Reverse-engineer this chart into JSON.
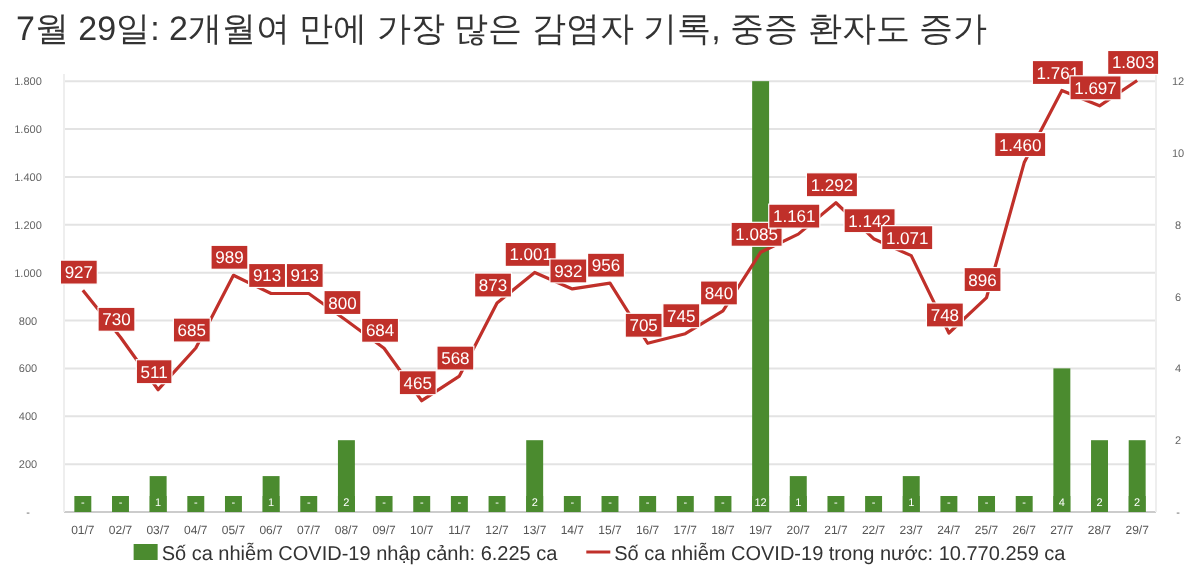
{
  "chart_data": {
    "type": "bar",
    "title": "7월 29일: 2개월여 만에 가장 많은 감염자 기록, 중증 환자도 증가",
    "categories": [
      "01/7",
      "02/7",
      "03/7",
      "04/7",
      "05/7",
      "06/7",
      "07/7",
      "08/7",
      "09/7",
      "10/7",
      "11/7",
      "12/7",
      "13/7",
      "14/7",
      "15/7",
      "16/7",
      "17/7",
      "18/7",
      "19/7",
      "20/7",
      "21/7",
      "22/7",
      "23/7",
      "24/7",
      "25/7",
      "26/7",
      "27/7",
      "28/7",
      "29/7"
    ],
    "series": [
      {
        "name": "Số ca nhiễm COVID-19 nhập cảnh: 6.225 ca",
        "axis": "y2",
        "color": "#4b8b2f",
        "values": [
          0,
          0,
          1,
          0,
          0,
          1,
          0,
          2,
          0,
          0,
          0,
          0,
          2,
          0,
          0,
          0,
          0,
          0,
          12,
          1,
          0,
          0,
          1,
          0,
          0,
          0,
          4,
          2,
          2
        ],
        "value_labels": [
          "-",
          "-",
          "1",
          "-",
          "-",
          "1",
          "-",
          "2",
          "-",
          "-",
          "-",
          "-",
          "2",
          "-",
          "-",
          "-",
          "-",
          "-",
          "12",
          "1",
          "-",
          "-",
          "1",
          "-",
          "-",
          "-",
          "4",
          "2",
          "2"
        ]
      },
      {
        "name": "Số ca nhiễm COVID-19 trong nước: 10.770.259 ca",
        "type": "line",
        "color": "#c0302a",
        "values": [
          927,
          730,
          511,
          685,
          989,
          913,
          913,
          800,
          684,
          465,
          568,
          873,
          1001,
          932,
          956,
          705,
          745,
          840,
          1085,
          1161,
          1292,
          1142,
          1071,
          748,
          896,
          1460,
          1761,
          1697,
          1803
        ],
        "value_labels": [
          "927",
          "730",
          "511",
          "685",
          "989",
          "913",
          "913",
          "800",
          "684",
          "465",
          "568",
          "873",
          "1.001",
          "932",
          "956",
          "705",
          "745",
          "840",
          "1.085",
          "1.161",
          "1.292",
          "1.142",
          "1.071",
          "748",
          "896",
          "1.460",
          "1.761",
          "1.697",
          "1.803"
        ]
      }
    ],
    "ylim": [
      0,
      1830
    ],
    "yticks": [
      {
        "value": 0,
        "label": "-"
      },
      200,
      400,
      600,
      800,
      {
        "value": 1000,
        "label": "1.000"
      },
      {
        "value": 1200,
        "label": "1.200"
      },
      {
        "value": 1400,
        "label": "1.400"
      },
      {
        "value": 1600,
        "label": "1.600"
      },
      {
        "value": 1800,
        "label": "1.800"
      }
    ],
    "y2lim": [
      0,
      12.2
    ],
    "y2ticks": [
      {
        "value": 0,
        "label": "-"
      },
      2,
      4,
      6,
      8,
      10,
      12
    ],
    "grid": "y",
    "legend": "bottom",
    "marker": "none"
  }
}
